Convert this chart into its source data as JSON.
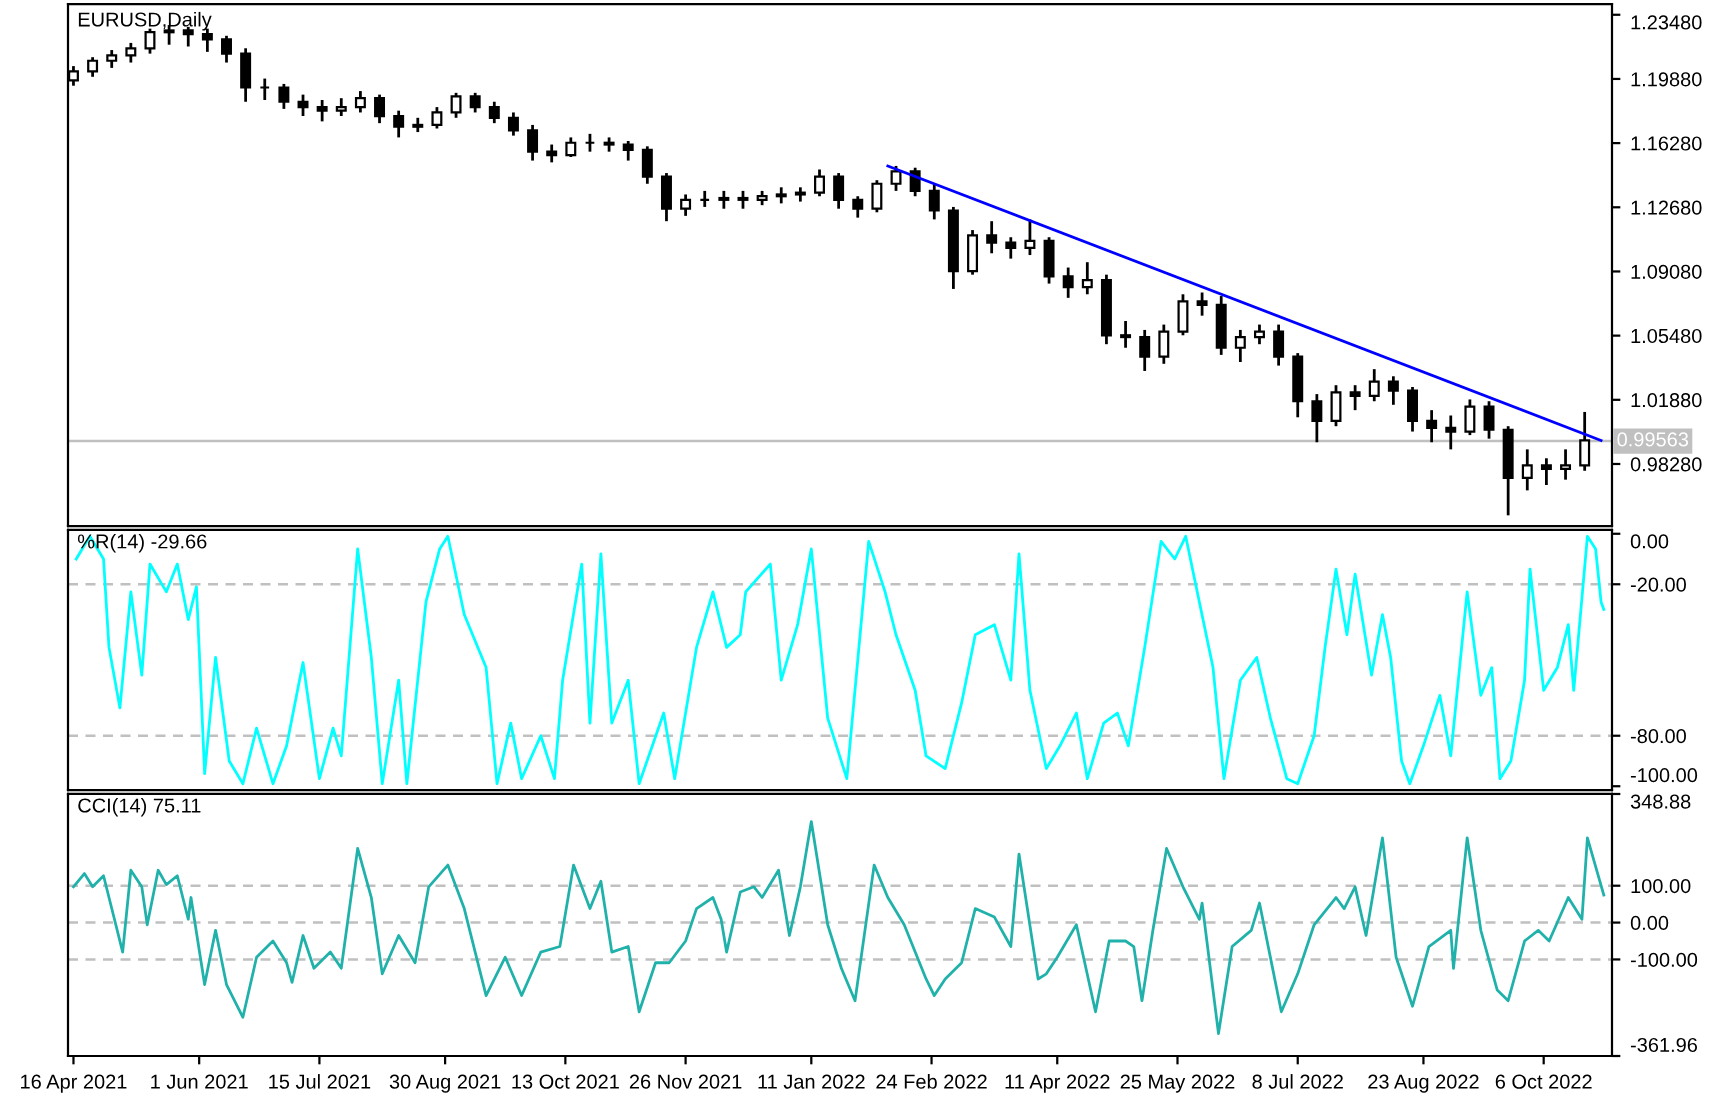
{
  "chart_data": [
    {
      "type": "candlestick",
      "title": "EURUSD,Daily",
      "tick_labels": "y",
      "xlim": [
        "2021-04-14",
        "2022-10-31"
      ],
      "ylim": [
        0.948,
        1.2408
      ],
      "yticks": [
        {
          "value": 1.2348,
          "label": "1.23480"
        },
        {
          "value": 1.1988,
          "label": "1.19880"
        },
        {
          "value": 1.1628,
          "label": "1.16280"
        },
        {
          "value": 1.1268,
          "label": "1.12680"
        },
        {
          "value": 1.0908,
          "label": "1.09080"
        },
        {
          "value": 1.0548,
          "label": "1.05480"
        },
        {
          "value": 1.0188,
          "label": "1.01880"
        },
        {
          "value": 0.9828,
          "label": "0.98280"
        }
      ],
      "x": [
        "2021-04-16",
        "2021-04-23",
        "2021-04-30",
        "2021-05-07",
        "2021-05-14",
        "2021-05-21",
        "2021-05-28",
        "2021-06-04",
        "2021-06-11",
        "2021-06-18",
        "2021-06-25",
        "2021-07-02",
        "2021-07-09",
        "2021-07-16",
        "2021-07-23",
        "2021-07-30",
        "2021-08-06",
        "2021-08-13",
        "2021-08-20",
        "2021-08-27",
        "2021-09-03",
        "2021-09-10",
        "2021-09-17",
        "2021-09-24",
        "2021-10-01",
        "2021-10-08",
        "2021-10-15",
        "2021-10-22",
        "2021-10-29",
        "2021-11-05",
        "2021-11-12",
        "2021-11-19",
        "2021-11-26",
        "2021-12-03",
        "2021-12-10",
        "2021-12-17",
        "2021-12-24",
        "2021-12-31",
        "2022-01-07",
        "2022-01-14",
        "2022-01-21",
        "2022-01-28",
        "2022-02-04",
        "2022-02-11",
        "2022-02-18",
        "2022-02-25",
        "2022-03-04",
        "2022-03-11",
        "2022-03-18",
        "2022-03-25",
        "2022-04-01",
        "2022-04-08",
        "2022-04-15",
        "2022-04-22",
        "2022-04-29",
        "2022-05-06",
        "2022-05-13",
        "2022-05-20",
        "2022-05-27",
        "2022-06-03",
        "2022-06-10",
        "2022-06-17",
        "2022-06-24",
        "2022-07-01",
        "2022-07-08",
        "2022-07-15",
        "2022-07-22",
        "2022-07-29",
        "2022-08-05",
        "2022-08-12",
        "2022-08-19",
        "2022-08-26",
        "2022-09-02",
        "2022-09-09",
        "2022-09-16",
        "2022-09-23",
        "2022-09-30",
        "2022-10-07",
        "2022-10-14",
        "2022-10-21"
      ],
      "ohlc": [
        [
          1.198,
          1.206,
          1.195,
          1.203
        ],
        [
          1.203,
          1.211,
          1.2,
          1.209
        ],
        [
          1.209,
          1.215,
          1.205,
          1.212
        ],
        [
          1.212,
          1.219,
          1.208,
          1.216
        ],
        [
          1.216,
          1.227,
          1.213,
          1.225
        ],
        [
          1.225,
          1.229,
          1.218,
          1.226
        ],
        [
          1.226,
          1.228,
          1.217,
          1.224
        ],
        [
          1.224,
          1.227,
          1.214,
          1.221
        ],
        [
          1.221,
          1.223,
          1.208,
          1.213
        ],
        [
          1.213,
          1.216,
          1.186,
          1.194
        ],
        [
          1.194,
          1.199,
          1.187,
          1.194
        ],
        [
          1.194,
          1.196,
          1.182,
          1.186
        ],
        [
          1.186,
          1.19,
          1.178,
          1.183
        ],
        [
          1.183,
          1.187,
          1.175,
          1.181
        ],
        [
          1.181,
          1.188,
          1.178,
          1.183
        ],
        [
          1.183,
          1.192,
          1.18,
          1.188
        ],
        [
          1.188,
          1.19,
          1.174,
          1.178
        ],
        [
          1.178,
          1.181,
          1.166,
          1.172
        ],
        [
          1.172,
          1.177,
          1.169,
          1.173
        ],
        [
          1.173,
          1.183,
          1.171,
          1.18
        ],
        [
          1.18,
          1.191,
          1.177,
          1.189
        ],
        [
          1.189,
          1.191,
          1.18,
          1.183
        ],
        [
          1.183,
          1.186,
          1.174,
          1.177
        ],
        [
          1.177,
          1.18,
          1.167,
          1.17
        ],
        [
          1.17,
          1.173,
          1.153,
          1.158
        ],
        [
          1.158,
          1.162,
          1.152,
          1.156
        ],
        [
          1.156,
          1.166,
          1.155,
          1.163
        ],
        [
          1.163,
          1.168,
          1.158,
          1.163
        ],
        [
          1.163,
          1.166,
          1.158,
          1.162
        ],
        [
          1.162,
          1.164,
          1.153,
          1.159
        ],
        [
          1.159,
          1.161,
          1.14,
          1.144
        ],
        [
          1.144,
          1.146,
          1.119,
          1.126
        ],
        [
          1.126,
          1.134,
          1.122,
          1.131
        ],
        [
          1.131,
          1.136,
          1.127,
          1.131
        ],
        [
          1.131,
          1.136,
          1.126,
          1.132
        ],
        [
          1.132,
          1.136,
          1.126,
          1.131
        ],
        [
          1.131,
          1.136,
          1.128,
          1.133
        ],
        [
          1.133,
          1.138,
          1.129,
          1.134
        ],
        [
          1.134,
          1.138,
          1.13,
          1.135
        ],
        [
          1.135,
          1.148,
          1.133,
          1.144
        ],
        [
          1.144,
          1.146,
          1.126,
          1.131
        ],
        [
          1.131,
          1.133,
          1.121,
          1.126
        ],
        [
          1.126,
          1.142,
          1.124,
          1.14
        ],
        [
          1.14,
          1.15,
          1.136,
          1.147
        ],
        [
          1.147,
          1.149,
          1.133,
          1.136
        ],
        [
          1.136,
          1.14,
          1.12,
          1.125
        ],
        [
          1.125,
          1.127,
          1.081,
          1.091
        ],
        [
          1.091,
          1.114,
          1.089,
          1.111
        ],
        [
          1.111,
          1.119,
          1.101,
          1.107
        ],
        [
          1.107,
          1.11,
          1.098,
          1.104
        ],
        [
          1.104,
          1.12,
          1.1,
          1.108
        ],
        [
          1.108,
          1.11,
          1.084,
          1.088
        ],
        [
          1.088,
          1.093,
          1.076,
          1.082
        ],
        [
          1.082,
          1.096,
          1.078,
          1.086
        ],
        [
          1.086,
          1.089,
          1.05,
          1.055
        ],
        [
          1.055,
          1.063,
          1.048,
          1.054
        ],
        [
          1.054,
          1.058,
          1.035,
          1.043
        ],
        [
          1.043,
          1.061,
          1.039,
          1.057
        ],
        [
          1.057,
          1.078,
          1.055,
          1.074
        ],
        [
          1.074,
          1.079,
          1.066,
          1.072
        ],
        [
          1.072,
          1.077,
          1.044,
          1.048
        ],
        [
          1.048,
          1.058,
          1.04,
          1.054
        ],
        [
          1.054,
          1.061,
          1.05,
          1.057
        ],
        [
          1.057,
          1.061,
          1.038,
          1.043
        ],
        [
          1.043,
          1.045,
          1.009,
          1.018
        ],
        [
          1.018,
          1.022,
          0.995,
          1.007
        ],
        [
          1.007,
          1.027,
          1.004,
          1.023
        ],
        [
          1.023,
          1.027,
          1.013,
          1.021
        ],
        [
          1.021,
          1.036,
          1.018,
          1.029
        ],
        [
          1.029,
          1.032,
          1.016,
          1.024
        ],
        [
          1.024,
          1.026,
          1.001,
          1.007
        ],
        [
          1.007,
          1.013,
          0.995,
          1.003
        ],
        [
          1.003,
          1.01,
          0.991,
          1.001
        ],
        [
          1.001,
          1.019,
          0.999,
          1.015
        ],
        [
          1.015,
          1.018,
          0.997,
          1.002
        ],
        [
          1.002,
          1.004,
          0.954,
          0.975
        ],
        [
          0.975,
          0.991,
          0.968,
          0.982
        ],
        [
          0.982,
          0.986,
          0.971,
          0.98
        ],
        [
          0.98,
          0.991,
          0.974,
          0.982
        ],
        [
          0.982,
          1.012,
          0.979,
          0.996
        ]
      ],
      "series": [
        {
          "type": "line",
          "color": "#0000ff",
          "x": [
            "2022-02-08",
            "2022-10-27"
          ],
          "values": [
            1.15,
            0.996
          ]
        }
      ],
      "ref_lines": [
        {
          "axis": "y",
          "value": 0.99563,
          "label": "0.99563",
          "color": "#c0c0c0",
          "line_style": "solid"
        }
      ]
    },
    {
      "type": "line",
      "title": "%R(14) -29.66",
      "tick_labels": "y",
      "xlim": [
        "2021-04-14",
        "2022-10-31"
      ],
      "ylim": [
        -101.5,
        1.5
      ],
      "yticks": [
        {
          "value": 0,
          "label": "0.00"
        },
        {
          "value": -20,
          "label": "-20.00"
        },
        {
          "value": -80,
          "label": "-80.00"
        },
        {
          "value": -100,
          "label": "-100.00"
        }
      ],
      "series": [
        {
          "color": "#00ffff",
          "x": [
            "2021-04-17",
            "2021-04-22",
            "2021-04-27",
            "2021-04-29",
            "2021-05-03",
            "2021-05-07",
            "2021-05-11",
            "2021-05-14",
            "2021-05-20",
            "2021-05-24",
            "2021-05-28",
            "2021-05-31",
            "2021-06-03",
            "2021-06-07",
            "2021-06-12",
            "2021-06-17",
            "2021-06-22",
            "2021-06-28",
            "2021-07-03",
            "2021-07-09",
            "2021-07-15",
            "2021-07-20",
            "2021-07-23",
            "2021-07-29",
            "2021-08-03",
            "2021-08-07",
            "2021-08-13",
            "2021-08-16",
            "2021-08-23",
            "2021-08-28",
            "2021-08-31",
            "2021-09-06",
            "2021-09-14",
            "2021-09-18",
            "2021-09-23",
            "2021-09-27",
            "2021-10-04",
            "2021-10-09",
            "2021-10-12",
            "2021-10-19",
            "2021-10-22",
            "2021-10-26",
            "2021-10-30",
            "2021-11-05",
            "2021-11-09",
            "2021-11-18",
            "2021-11-22",
            "2021-11-30",
            "2021-12-06",
            "2021-12-11",
            "2021-12-16",
            "2021-12-18",
            "2021-12-27",
            "2021-12-31",
            "2022-01-06",
            "2022-01-11",
            "2022-01-17",
            "2022-01-24",
            "2022-02-01",
            "2022-02-07",
            "2022-02-11",
            "2022-02-18",
            "2022-02-22",
            "2022-03-01",
            "2022-03-07",
            "2022-03-12",
            "2022-03-19",
            "2022-03-25",
            "2022-03-28",
            "2022-04-01",
            "2022-04-07",
            "2022-04-12",
            "2022-04-18",
            "2022-04-22",
            "2022-04-28",
            "2022-05-03",
            "2022-05-07",
            "2022-05-13",
            "2022-05-19",
            "2022-05-24",
            "2022-05-28",
            "2022-06-02",
            "2022-06-07",
            "2022-06-11",
            "2022-06-17",
            "2022-06-23",
            "2022-06-28",
            "2022-07-04",
            "2022-07-08",
            "2022-07-14",
            "2022-07-18",
            "2022-07-22",
            "2022-07-26",
            "2022-07-29",
            "2022-08-04",
            "2022-08-08",
            "2022-08-11",
            "2022-08-15",
            "2022-08-18",
            "2022-08-23",
            "2022-08-29",
            "2022-09-02",
            "2022-09-08",
            "2022-09-13",
            "2022-09-17",
            "2022-09-20",
            "2022-09-24",
            "2022-09-29",
            "2022-10-01",
            "2022-10-06",
            "2022-10-11",
            "2022-10-15",
            "2022-10-17",
            "2022-10-22",
            "2022-10-25",
            "2022-10-27",
            "2022-10-28"
          ],
          "values": [
            -10,
            -1,
            -10,
            -45,
            -69,
            -23,
            -56,
            -12,
            -23,
            -12,
            -34,
            -21,
            -95,
            -49,
            -90,
            -99,
            -77,
            -99,
            -84,
            -51,
            -97,
            -77,
            -88,
            -6,
            -49,
            -99,
            -58,
            -99,
            -27,
            -6,
            -1,
            -32,
            -53,
            -99,
            -75,
            -97,
            -80,
            -97,
            -58,
            -12,
            -75,
            -8,
            -75,
            -58,
            -99,
            -71,
            -97,
            -45,
            -23,
            -45,
            -40,
            -23,
            -12,
            -58,
            -36,
            -6,
            -73,
            -97,
            -3,
            -23,
            -40,
            -62,
            -88,
            -93,
            -67,
            -40,
            -36,
            -58,
            -8,
            -62,
            -93,
            -84,
            -71,
            -97,
            -75,
            -71,
            -84,
            -45,
            -3,
            -10,
            -1,
            -27,
            -53,
            -97,
            -58,
            -49,
            -73,
            -97,
            -99,
            -80,
            -45,
            -14,
            -40,
            -16,
            -56,
            -32,
            -49,
            -90,
            -99,
            -84,
            -64,
            -88,
            -23,
            -64,
            -53,
            -97,
            -90,
            -58,
            -14,
            -62,
            -53,
            -36,
            -62,
            -1,
            -6,
            -27,
            -30
          ]
        }
      ],
      "ref_lines": [
        {
          "axis": "y",
          "value": -20,
          "color": "#c0c0c0",
          "line_style": "dashed"
        },
        {
          "axis": "y",
          "value": -80,
          "color": "#c0c0c0",
          "line_style": "dashed"
        }
      ]
    },
    {
      "type": "line",
      "title": "CCI(14) 75.11",
      "xlim": [
        "2021-04-14",
        "2022-10-31"
      ],
      "ylim": [
        -361.96,
        348.88
      ],
      "xticks": [
        {
          "value": "2021-04-16",
          "label": "16 Apr 2021"
        },
        {
          "value": "2021-06-01",
          "label": "1 Jun 2021"
        },
        {
          "value": "2021-07-15",
          "label": "15 Jul 2021"
        },
        {
          "value": "2021-08-30",
          "label": "30 Aug 2021"
        },
        {
          "value": "2021-10-13",
          "label": "13 Oct 2021"
        },
        {
          "value": "2021-11-26",
          "label": "26 Nov 2021"
        },
        {
          "value": "2022-01-11",
          "label": "11 Jan 2022"
        },
        {
          "value": "2022-02-24",
          "label": "24 Feb 2022"
        },
        {
          "value": "2022-04-11",
          "label": "11 Apr 2022"
        },
        {
          "value": "2022-05-25",
          "label": "25 May 2022"
        },
        {
          "value": "2022-07-08",
          "label": "8 Jul 2022"
        },
        {
          "value": "2022-08-23",
          "label": "23 Aug 2022"
        },
        {
          "value": "2022-10-06",
          "label": "6 Oct 2022"
        }
      ],
      "yticks": [
        {
          "value": 348.88,
          "label": "348.88"
        },
        {
          "value": 100,
          "label": "100.00"
        },
        {
          "value": 0,
          "label": "0.00"
        },
        {
          "value": -100,
          "label": "-100.00"
        },
        {
          "value": -361.96,
          "label": "-361.96"
        }
      ],
      "series": [
        {
          "color": "#20b2aa",
          "x": [
            "2021-04-16",
            "2021-04-20",
            "2021-04-23",
            "2021-04-27",
            "2021-05-01",
            "2021-05-04",
            "2021-05-07",
            "2021-05-11",
            "2021-05-13",
            "2021-05-17",
            "2021-05-20",
            "2021-05-24",
            "2021-05-28",
            "2021-05-29",
            "2021-06-03",
            "2021-06-07",
            "2021-06-11",
            "2021-06-17",
            "2021-06-22",
            "2021-06-28",
            "2021-07-03",
            "2021-07-05",
            "2021-07-09",
            "2021-07-13",
            "2021-07-19",
            "2021-07-23",
            "2021-07-29",
            "2021-08-03",
            "2021-08-07",
            "2021-08-13",
            "2021-08-19",
            "2021-08-24",
            "2021-08-31",
            "2021-09-06",
            "2021-09-14",
            "2021-09-21",
            "2021-09-27",
            "2021-10-04",
            "2021-10-11",
            "2021-10-16",
            "2021-10-22",
            "2021-10-26",
            "2021-10-30",
            "2021-11-05",
            "2021-11-09",
            "2021-11-15",
            "2021-11-20",
            "2021-11-26",
            "2021-11-30",
            "2021-12-06",
            "2021-12-09",
            "2021-12-11",
            "2021-12-16",
            "2021-12-21",
            "2021-12-24",
            "2021-12-30",
            "2022-01-03",
            "2022-01-07",
            "2022-01-11",
            "2022-01-17",
            "2022-01-22",
            "2022-01-27",
            "2022-02-03",
            "2022-02-08",
            "2022-02-14",
            "2022-02-22",
            "2022-02-25",
            "2022-03-01",
            "2022-03-07",
            "2022-03-12",
            "2022-03-19",
            "2022-03-25",
            "2022-03-28",
            "2022-04-04",
            "2022-04-07",
            "2022-04-11",
            "2022-04-18",
            "2022-04-25",
            "2022-04-30",
            "2022-05-06",
            "2022-05-09",
            "2022-05-12",
            "2022-05-16",
            "2022-05-21",
            "2022-05-27",
            "2022-06-02",
            "2022-06-03",
            "2022-06-09",
            "2022-06-14",
            "2022-06-21",
            "2022-06-24",
            "2022-07-02",
            "2022-07-08",
            "2022-07-14",
            "2022-07-22",
            "2022-07-25",
            "2022-07-29",
            "2022-08-02",
            "2022-08-08",
            "2022-08-13",
            "2022-08-19",
            "2022-08-25",
            "2022-09-02",
            "2022-09-03",
            "2022-09-08",
            "2022-09-13",
            "2022-09-19",
            "2022-09-23",
            "2022-09-29",
            "2022-10-04",
            "2022-10-08",
            "2022-10-15",
            "2022-10-20",
            "2022-10-22",
            "2022-10-28"
          ],
          "values": [
            97,
            133,
            97,
            127,
            9,
            -80,
            142,
            97,
            -6,
            142,
            103,
            127,
            9,
            68,
            -168,
            -21,
            -168,
            -257,
            -94,
            -50,
            -109,
            -162,
            -35,
            -124,
            -80,
            -124,
            201,
            68,
            -139,
            -35,
            -109,
            97,
            156,
            38,
            -198,
            -94,
            -198,
            -80,
            -65,
            156,
            38,
            112,
            -80,
            -65,
            -242,
            -109,
            -109,
            -50,
            38,
            68,
            9,
            -80,
            83,
            97,
            68,
            142,
            -35,
            97,
            274,
            -6,
            -124,
            -212,
            156,
            68,
            -6,
            -153,
            -198,
            -153,
            -109,
            38,
            15,
            -65,
            186,
            -153,
            -139,
            -94,
            -6,
            -242,
            -50,
            -50,
            -65,
            -212,
            -21,
            201,
            97,
            9,
            53,
            -301,
            -65,
            -21,
            53,
            -242,
            -139,
            -6,
            68,
            38,
            97,
            -35,
            230,
            -94,
            -227,
            -65,
            -21,
            -124,
            230,
            -21,
            -183,
            -212,
            -50,
            -21,
            -50,
            68,
            9,
            230,
            75
          ]
        }
      ],
      "ref_lines": [
        {
          "axis": "y",
          "value": 100,
          "color": "#c0c0c0",
          "line_style": "dashed"
        },
        {
          "axis": "y",
          "value": 0,
          "color": "#c0c0c0",
          "line_style": "dashed"
        },
        {
          "axis": "y",
          "value": -100,
          "color": "#c0c0c0",
          "line_style": "dashed"
        }
      ]
    }
  ]
}
